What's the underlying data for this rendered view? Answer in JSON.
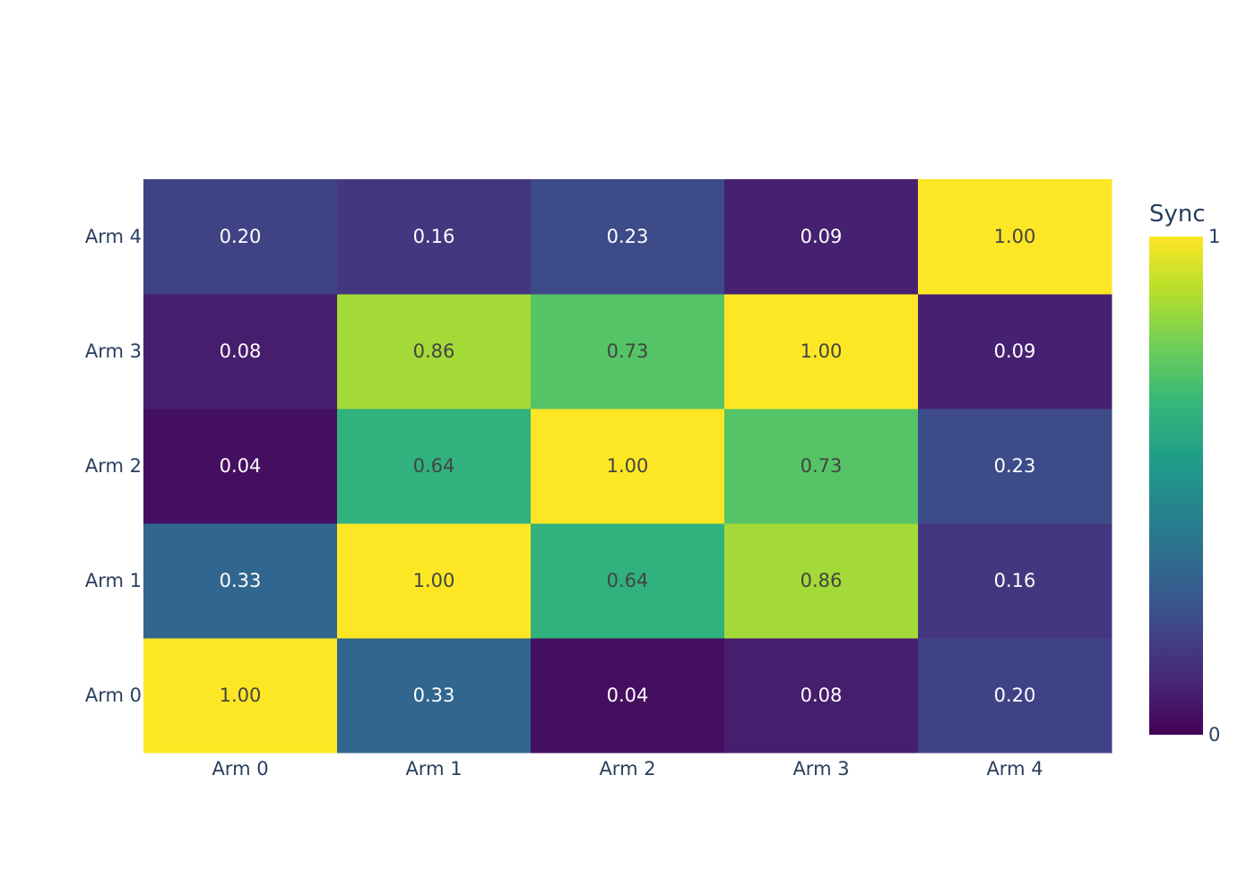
{
  "chart_data": {
    "type": "heatmap",
    "x_labels": [
      "Arm 0",
      "Arm 1",
      "Arm 2",
      "Arm 3",
      "Arm 4"
    ],
    "y_labels": [
      "Arm 0",
      "Arm 1",
      "Arm 2",
      "Arm 3",
      "Arm 4"
    ],
    "z": [
      [
        1.0,
        0.33,
        0.04,
        0.08,
        0.2
      ],
      [
        0.33,
        1.0,
        0.64,
        0.86,
        0.16
      ],
      [
        0.04,
        0.64,
        1.0,
        0.73,
        0.23
      ],
      [
        0.08,
        0.86,
        0.73,
        1.0,
        0.09
      ],
      [
        0.2,
        0.16,
        0.23,
        0.09,
        1.0
      ]
    ],
    "text_format": "0.00",
    "zmin": 0,
    "zmax": 1,
    "colorscale": "Viridis",
    "colorscale_stops": [
      "#440154",
      "#482878",
      "#3e4989",
      "#31688e",
      "#26828e",
      "#1f9e89",
      "#35b779",
      "#6ece58",
      "#b5de2b",
      "#fde725"
    ],
    "colorbar": {
      "title": "Sync",
      "tick_labels": [
        "1",
        "0"
      ],
      "tick_values": [
        1,
        0
      ]
    },
    "text_colors": {
      "dark": "#444444",
      "light": "#ffffff"
    },
    "axis_text_color": "#2a3f5f"
  }
}
